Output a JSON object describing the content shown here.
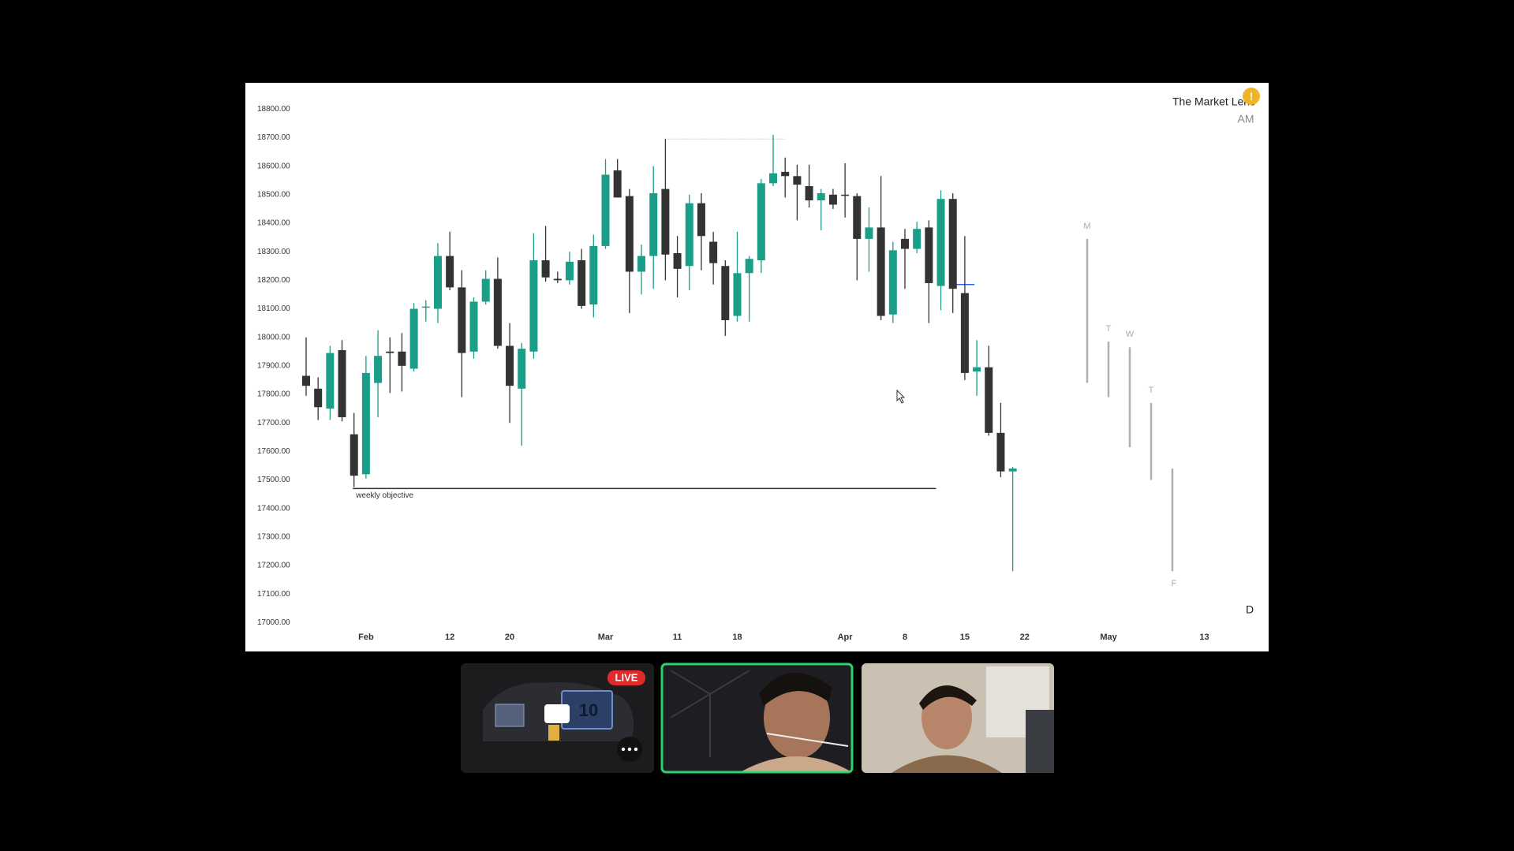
{
  "chart_data": {
    "type": "candlestick",
    "categories": [
      null,
      null,
      null,
      null,
      null,
      "Feb",
      null,
      null,
      null,
      null,
      null,
      null,
      "12",
      null,
      null,
      null,
      null,
      "20",
      null,
      null,
      null,
      null,
      null,
      null,
      null,
      "Mar",
      null,
      null,
      null,
      null,
      null,
      "11",
      null,
      null,
      null,
      null,
      "18",
      null,
      null,
      null,
      null,
      null,
      null,
      null,
      null,
      "Apr",
      null,
      null,
      null,
      null,
      "8",
      null,
      null,
      null,
      null,
      "15",
      null,
      null,
      null,
      null,
      "22",
      null,
      null,
      null,
      null,
      null,
      null,
      "May",
      null,
      null,
      null,
      null,
      null,
      null,
      null,
      "13"
    ],
    "open": [
      17865,
      17820,
      17750,
      17955,
      17660,
      17520,
      17840,
      17950,
      17950,
      17890,
      18105,
      18100,
      18285,
      18175,
      17950,
      18125,
      18205,
      17970,
      17820,
      17950,
      18270,
      18205,
      18200,
      18270,
      18115,
      18320,
      18585,
      18495,
      18230,
      18285,
      18520,
      18295,
      18250,
      18470,
      18335,
      18250,
      18075,
      18225,
      18270,
      18540,
      18580,
      18565,
      18530,
      18480,
      18500,
      18500,
      18495,
      18345,
      18385,
      18080,
      18345,
      18310,
      18385,
      18180,
      18485,
      18155,
      17880,
      17895,
      17665,
      17530,
      null,
      null,
      null,
      null,
      null,
      null,
      null,
      null,
      null,
      null,
      null,
      null,
      null,
      null,
      null,
      null
    ],
    "high": [
      18000,
      17860,
      17970,
      17990,
      17735,
      17935,
      18025,
      18000,
      18015,
      18120,
      18130,
      18330,
      18370,
      18235,
      18140,
      18235,
      18280,
      18050,
      17980,
      18365,
      18390,
      18230,
      18300,
      18310,
      18360,
      18625,
      18625,
      18520,
      18325,
      18600,
      18695,
      18355,
      18500,
      18505,
      18370,
      18270,
      18370,
      18285,
      18555,
      18710,
      18630,
      18605,
      18605,
      18520,
      18520,
      18610,
      18505,
      18455,
      18565,
      18335,
      18380,
      18405,
      18410,
      18515,
      18505,
      18355,
      17990,
      17970,
      17770,
      17545,
      null,
      null,
      null,
      null,
      null,
      null,
      null,
      null,
      null,
      null,
      null,
      null,
      null,
      null,
      null,
      null
    ],
    "low": [
      17795,
      17710,
      17710,
      17705,
      17475,
      17505,
      17720,
      17805,
      17810,
      17880,
      18055,
      18050,
      18165,
      17790,
      17925,
      18115,
      17960,
      17700,
      17620,
      17925,
      18195,
      18190,
      18185,
      18100,
      18070,
      18310,
      18490,
      18085,
      18150,
      18170,
      18200,
      18140,
      18165,
      18235,
      18185,
      18005,
      18055,
      18055,
      18225,
      18530,
      18490,
      18410,
      18455,
      18375,
      18450,
      18420,
      18200,
      18230,
      18060,
      18050,
      18170,
      18295,
      18050,
      18095,
      18085,
      17850,
      17795,
      17655,
      17510,
      17180,
      null,
      null,
      null,
      null,
      null,
      null,
      null,
      null,
      null,
      null,
      null,
      null,
      null,
      null,
      null,
      null
    ],
    "close": [
      17830,
      17755,
      17945,
      17720,
      17515,
      17875,
      17935,
      17945,
      17900,
      18100,
      18108,
      18285,
      18175,
      17945,
      18125,
      18205,
      17970,
      17830,
      17960,
      18270,
      18210,
      18200,
      18265,
      18110,
      18320,
      18570,
      18490,
      18230,
      18285,
      18505,
      18290,
      18240,
      18470,
      18355,
      18260,
      18060,
      18225,
      18275,
      18540,
      18575,
      18565,
      18535,
      18480,
      18505,
      18465,
      18498,
      18345,
      18385,
      18075,
      18305,
      18310,
      18380,
      18190,
      18485,
      18170,
      17875,
      17895,
      17665,
      17530,
      17540,
      null,
      null,
      null,
      null,
      null,
      null,
      null,
      null,
      null,
      null,
      null,
      null,
      null,
      null,
      null,
      null
    ],
    "up_color": "#1a9e88",
    "down_color": "#333333",
    "ylim": [
      17000,
      18800
    ],
    "yticks": [
      {
        "value": 18800,
        "label": "18800.00"
      },
      {
        "value": 18700,
        "label": "18700.00"
      },
      {
        "value": 18600,
        "label": "18600.00"
      },
      {
        "value": 18500,
        "label": "18500.00"
      },
      {
        "value": 18400,
        "label": "18400.00"
      },
      {
        "value": 18300,
        "label": "18300.00"
      },
      {
        "value": 18200,
        "label": "18200.00"
      },
      {
        "value": 18100,
        "label": "18100.00"
      },
      {
        "value": 18000,
        "label": "18000.00"
      },
      {
        "value": 17900,
        "label": "17900.00"
      },
      {
        "value": 17800,
        "label": "17800.00"
      },
      {
        "value": 17700,
        "label": "17700.00"
      },
      {
        "value": 17600,
        "label": "17600.00"
      },
      {
        "value": 17500,
        "label": "17500.00"
      },
      {
        "value": 17400,
        "label": "17400.00"
      },
      {
        "value": 17300,
        "label": "17300.00"
      },
      {
        "value": 17200,
        "label": "17200.00"
      },
      {
        "value": 17100,
        "label": "17100.00"
      },
      {
        "value": 17000,
        "label": "17000.00"
      }
    ],
    "grid": false,
    "levels": [
      {
        "value": 17470,
        "label": "weekly objective",
        "color": "#333333"
      },
      {
        "value": 18695,
        "color": "#9e9e9e",
        "style": "dotted"
      },
      {
        "value": 18185,
        "color": "#2962ff"
      }
    ],
    "session_ranges": [
      {
        "label": "M",
        "high": 18345,
        "low": 17840
      },
      {
        "label": "T",
        "high": 17985,
        "low": 17790
      },
      {
        "label": "W",
        "high": 17965,
        "low": 17615
      },
      {
        "label": "T",
        "high": 17770,
        "low": 17500
      },
      {
        "label": "F",
        "high": 17540,
        "low": 17180
      }
    ],
    "range_color": "#b0b0b0"
  },
  "overlay": {
    "title": "The Market Lens",
    "badge": "!",
    "session": "AM",
    "timeframe": "D"
  },
  "video_call": {
    "live_badge": "LIVE",
    "screen_number": "10"
  }
}
